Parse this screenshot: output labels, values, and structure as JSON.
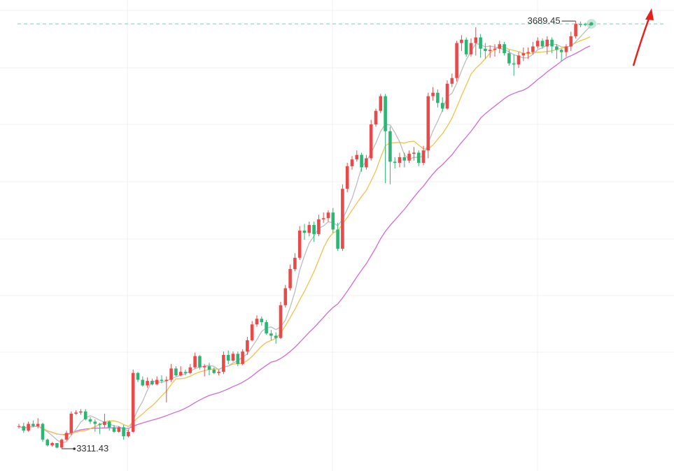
{
  "chart_data": {
    "type": "candlestick",
    "title": "",
    "xlabel": "",
    "ylabel": "",
    "ylim": [
      3295,
      3705
    ],
    "grid": true,
    "high_annotation": "3689.45",
    "low_annotation": "3311.43",
    "colors": {
      "up": "#e84a4a",
      "down": "#2bb673",
      "ma_fast": "#bdbdbd",
      "ma_mid": "#f2c14e",
      "ma_slow": "#d36ad6",
      "guide_line": "#7fd0b0",
      "arrow": "#e8201a",
      "grid": "#f0f0f0"
    },
    "candles": [
      [
        3331,
        3331,
        3333,
        3329
      ],
      [
        3331,
        3327,
        3334,
        3325
      ],
      [
        3327,
        3333,
        3335,
        3326
      ],
      [
        3333,
        3331,
        3336,
        3330
      ],
      [
        3331,
        3333,
        3338,
        3329
      ],
      [
        3333,
        3319,
        3334,
        3317
      ],
      [
        3319,
        3314,
        3320,
        3313
      ],
      [
        3314,
        3316,
        3317,
        3313
      ],
      [
        3316,
        3312,
        3316,
        3311.43
      ],
      [
        3312,
        3319,
        3320,
        3311
      ],
      [
        3319,
        3325,
        3327,
        3318
      ],
      [
        3325,
        3342,
        3344,
        3323
      ],
      [
        3342,
        3343,
        3345,
        3341
      ],
      [
        3343,
        3344,
        3346,
        3341
      ],
      [
        3344,
        3337,
        3346,
        3336
      ],
      [
        3337,
        3335,
        3339,
        3333
      ],
      [
        3335,
        3333,
        3337,
        3326
      ],
      [
        3333,
        3332,
        3334,
        3324
      ],
      [
        3332,
        3335,
        3342,
        3330
      ],
      [
        3335,
        3330,
        3336,
        3327
      ],
      [
        3330,
        3326,
        3332,
        3325
      ],
      [
        3326,
        3330,
        3331,
        3325
      ],
      [
        3330,
        3322,
        3332,
        3319
      ],
      [
        3322,
        3326,
        3328,
        3321
      ],
      [
        3326,
        3378,
        3381,
        3325
      ],
      [
        3378,
        3372,
        3379,
        3370
      ],
      [
        3372,
        3367,
        3375,
        3366
      ],
      [
        3367,
        3371,
        3374,
        3365
      ],
      [
        3371,
        3368,
        3373,
        3367
      ],
      [
        3368,
        3372,
        3375,
        3367
      ],
      [
        3372,
        3371,
        3376,
        3369
      ],
      [
        3371,
        3372,
        3375,
        3352
      ],
      [
        3372,
        3382,
        3386,
        3370
      ],
      [
        3382,
        3376,
        3384,
        3375
      ],
      [
        3376,
        3379,
        3384,
        3375
      ],
      [
        3379,
        3378,
        3381,
        3376
      ],
      [
        3378,
        3383,
        3386,
        3377
      ],
      [
        3383,
        3393,
        3396,
        3382
      ],
      [
        3393,
        3383,
        3394,
        3381
      ],
      [
        3383,
        3384,
        3386,
        3375
      ],
      [
        3384,
        3381,
        3387,
        3376
      ],
      [
        3381,
        3378,
        3383,
        3377
      ],
      [
        3378,
        3379,
        3381,
        3376
      ],
      [
        3379,
        3394,
        3397,
        3377
      ],
      [
        3394,
        3389,
        3398,
        3386
      ],
      [
        3389,
        3395,
        3397,
        3388
      ],
      [
        3395,
        3386,
        3397,
        3384
      ],
      [
        3386,
        3397,
        3399,
        3385
      ],
      [
        3397,
        3407,
        3410,
        3394
      ],
      [
        3407,
        3421,
        3424,
        3406
      ],
      [
        3421,
        3426,
        3429,
        3419
      ],
      [
        3426,
        3423,
        3428,
        3420
      ],
      [
        3423,
        3413,
        3425,
        3412
      ],
      [
        3413,
        3411,
        3416,
        3407
      ],
      [
        3411,
        3409,
        3414,
        3404
      ],
      [
        3409,
        3438,
        3441,
        3408
      ],
      [
        3438,
        3453,
        3456,
        3436
      ],
      [
        3453,
        3470,
        3474,
        3451
      ],
      [
        3470,
        3480,
        3484,
        3468
      ],
      [
        3480,
        3504,
        3508,
        3478
      ],
      [
        3504,
        3502,
        3510,
        3496
      ],
      [
        3502,
        3509,
        3512,
        3499
      ],
      [
        3509,
        3501,
        3512,
        3494
      ],
      [
        3501,
        3514,
        3518,
        3499
      ],
      [
        3514,
        3515,
        3520,
        3511
      ],
      [
        3515,
        3520,
        3522,
        3512
      ],
      [
        3520,
        3505,
        3524,
        3502
      ],
      [
        3505,
        3488,
        3511,
        3486
      ],
      [
        3488,
        3541,
        3545,
        3486
      ],
      [
        3541,
        3561,
        3564,
        3538
      ],
      [
        3561,
        3567,
        3570,
        3558
      ],
      [
        3567,
        3571,
        3575,
        3565
      ],
      [
        3571,
        3560,
        3573,
        3556
      ],
      [
        3560,
        3568,
        3571,
        3558
      ],
      [
        3568,
        3598,
        3602,
        3566
      ],
      [
        3598,
        3610,
        3612,
        3596
      ],
      [
        3610,
        3623,
        3625,
        3608
      ],
      [
        3623,
        3592,
        3625,
        3546
      ],
      [
        3592,
        3565,
        3596,
        3545
      ],
      [
        3565,
        3564,
        3569,
        3559
      ],
      [
        3564,
        3569,
        3573,
        3560
      ],
      [
        3569,
        3566,
        3573,
        3560
      ],
      [
        3566,
        3572,
        3575,
        3564
      ],
      [
        3572,
        3573,
        3578,
        3566
      ],
      [
        3573,
        3564,
        3575,
        3561
      ],
      [
        3564,
        3575,
        3579,
        3562
      ],
      [
        3575,
        3623,
        3626,
        3568
      ],
      [
        3623,
        3626,
        3631,
        3619
      ],
      [
        3626,
        3617,
        3629,
        3613
      ],
      [
        3617,
        3612,
        3622,
        3609
      ],
      [
        3612,
        3634,
        3637,
        3611
      ],
      [
        3634,
        3639,
        3643,
        3631
      ],
      [
        3639,
        3670,
        3672,
        3636
      ],
      [
        3670,
        3673,
        3677,
        3663
      ],
      [
        3673,
        3660,
        3675,
        3658
      ],
      [
        3660,
        3670,
        3674,
        3658
      ],
      [
        3670,
        3675,
        3684,
        3659
      ],
      [
        3675,
        3665,
        3678,
        3657
      ],
      [
        3665,
        3663,
        3670,
        3656
      ],
      [
        3663,
        3664,
        3668,
        3657
      ],
      [
        3664,
        3665,
        3669,
        3658
      ],
      [
        3665,
        3669,
        3672,
        3661
      ],
      [
        3669,
        3661,
        3671,
        3659
      ],
      [
        3661,
        3652,
        3664,
        3650
      ],
      [
        3652,
        3651,
        3660,
        3641
      ],
      [
        3651,
        3659,
        3662,
        3648
      ],
      [
        3659,
        3661,
        3666,
        3654
      ],
      [
        3661,
        3662,
        3666,
        3656
      ],
      [
        3662,
        3667,
        3671,
        3660
      ],
      [
        3667,
        3672,
        3675,
        3665
      ],
      [
        3672,
        3667,
        3674,
        3665
      ],
      [
        3667,
        3673,
        3676,
        3660
      ],
      [
        3673,
        3667,
        3675,
        3661
      ],
      [
        3667,
        3664,
        3669,
        3656
      ],
      [
        3664,
        3662,
        3665,
        3654
      ],
      [
        3662,
        3667,
        3669,
        3658
      ],
      [
        3667,
        3676,
        3680,
        3663
      ],
      [
        3676,
        3687,
        3689.45,
        3674
      ],
      [
        3687,
        3686,
        3689,
        3684
      ],
      [
        3687,
        3686,
        3688,
        3685
      ],
      [
        3686,
        3687,
        3688,
        3685
      ]
    ]
  }
}
